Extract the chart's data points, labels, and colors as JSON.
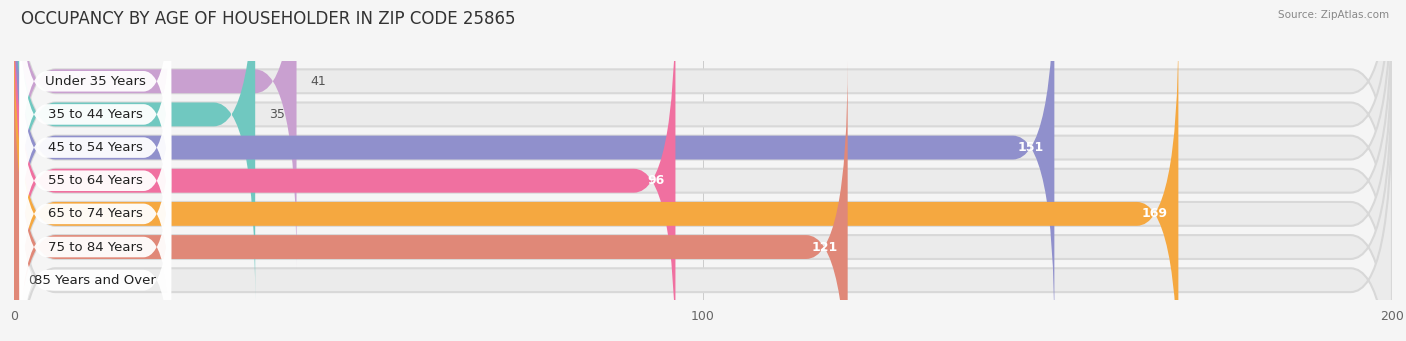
{
  "title": "OCCUPANCY BY AGE OF HOUSEHOLDER IN ZIP CODE 25865",
  "source": "Source: ZipAtlas.com",
  "categories": [
    "Under 35 Years",
    "35 to 44 Years",
    "45 to 54 Years",
    "55 to 64 Years",
    "65 to 74 Years",
    "75 to 84 Years",
    "85 Years and Over"
  ],
  "values": [
    41,
    35,
    151,
    96,
    169,
    121,
    0
  ],
  "bar_colors": [
    "#c9a0d0",
    "#70c8c0",
    "#9090cc",
    "#f070a0",
    "#f5a840",
    "#e08878",
    "#a0b8e8"
  ],
  "row_bg_color": "#ebebeb",
  "xlim": [
    0,
    200
  ],
  "xticks": [
    0,
    100,
    200
  ],
  "page_bg_color": "#f5f5f5",
  "title_fontsize": 12,
  "label_fontsize": 9.5,
  "value_fontsize": 9,
  "value_inside_threshold": 50
}
